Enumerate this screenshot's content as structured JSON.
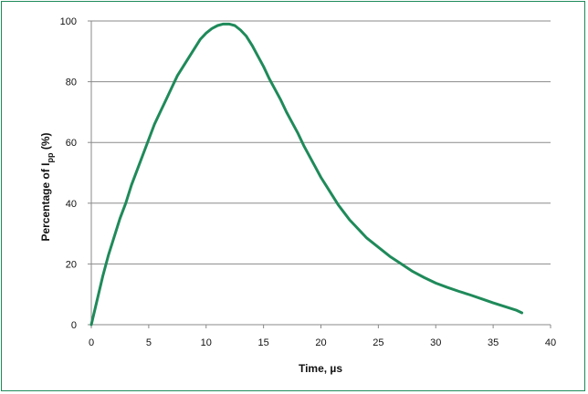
{
  "chart_data": {
    "type": "line",
    "title": "",
    "xlabel": "Time, µs",
    "ylabel_prefix": "Percentage of  I",
    "ylabel_sub": "pp",
    "ylabel_suffix": " (%)",
    "xlim": [
      0,
      40
    ],
    "ylim": [
      0,
      100
    ],
    "xticks": [
      0,
      5,
      10,
      15,
      20,
      25,
      30,
      35,
      40
    ],
    "yticks": [
      0,
      20,
      40,
      60,
      80,
      100
    ],
    "grid": true,
    "colors": {
      "frame": "#1f8a5a",
      "curve": "#1f8a5a",
      "grid": "#8a8a8a"
    },
    "series": [
      {
        "x": [
          0,
          0.5,
          1,
          1.5,
          2,
          2.5,
          3,
          3.5,
          4,
          4.5,
          5,
          5.5,
          6,
          6.5,
          7,
          7.5,
          8,
          8.5,
          9,
          9.5,
          10,
          10.5,
          11,
          11.5,
          12,
          12.5,
          13,
          13.5,
          14,
          14.5,
          15,
          15.5,
          16,
          16.5,
          17,
          17.5,
          18,
          18.5,
          19,
          19.5,
          20,
          20.5,
          21,
          21.5,
          22,
          22.5,
          23,
          23.5,
          24,
          24.5,
          25,
          26,
          27,
          28,
          29,
          30,
          31,
          32,
          33,
          34,
          35,
          36,
          37,
          37.5
        ],
        "y": [
          0,
          8,
          16,
          23,
          29,
          35,
          40,
          46,
          51,
          56,
          61,
          66,
          70,
          74,
          78,
          82,
          85,
          88,
          91,
          94,
          96,
          97.5,
          98.5,
          99,
          99,
          98.5,
          97,
          95,
          92,
          88.5,
          85,
          81,
          77.5,
          74,
          70,
          66.5,
          63,
          59,
          55.5,
          52,
          48.5,
          45.5,
          42.5,
          39.5,
          37,
          34.5,
          32.5,
          30.5,
          28.5,
          27,
          25.5,
          22.5,
          20,
          17.5,
          15.5,
          13.7,
          12.3,
          11,
          9.8,
          8.5,
          7.2,
          6,
          4.8,
          3.9
        ]
      }
    ]
  }
}
